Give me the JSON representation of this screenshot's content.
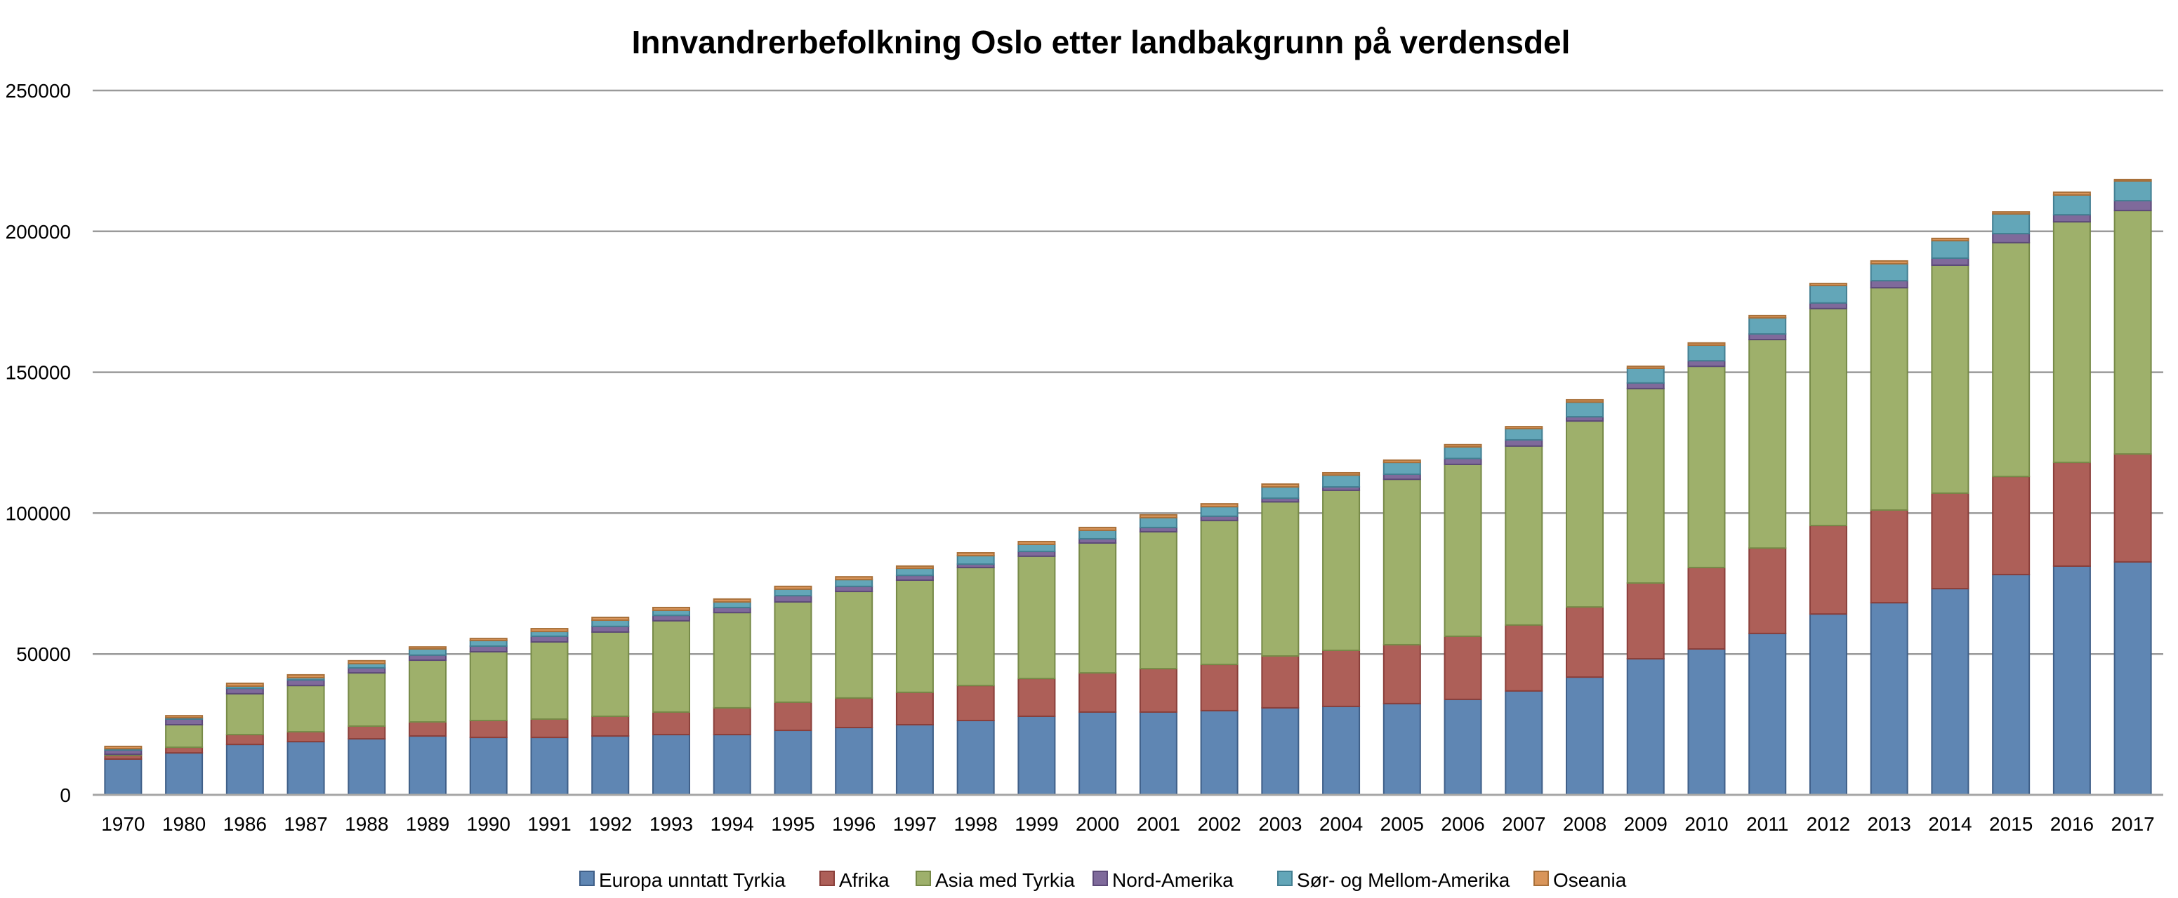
{
  "chart_data": {
    "type": "bar",
    "stacked": true,
    "title": "Innvandrerbefolkning Oslo etter landbakgrunn på verdensdel",
    "xlabel": "",
    "ylabel": "",
    "ylim": [
      0,
      250000
    ],
    "yticks": [
      "0",
      "50000",
      "100000",
      "150000",
      "200000",
      "250000"
    ],
    "ytick_values": [
      0,
      50000,
      100000,
      150000,
      200000,
      250000
    ],
    "grid": true,
    "legend_position": "bottom",
    "categories": [
      "1970",
      "1980",
      "1986",
      "1987",
      "1988",
      "1989",
      "1990",
      "1991",
      "1992",
      "1993",
      "1994",
      "1995",
      "1996",
      "1997",
      "1998",
      "1999",
      "2000",
      "2001",
      "2002",
      "2003",
      "2004",
      "2005",
      "2006",
      "2007",
      "2008",
      "2009",
      "2010",
      "2011",
      "2012",
      "2013",
      "2014",
      "2015",
      "2016",
      "2017"
    ],
    "series": [
      {
        "name": "Europa unntatt Tyrkia",
        "color": "#5f86b3",
        "border": "#3f5f88",
        "values": [
          12700,
          14900,
          17900,
          18900,
          19900,
          20900,
          20400,
          20400,
          20900,
          21400,
          21400,
          22900,
          23900,
          24900,
          26400,
          27900,
          29400,
          29400,
          29900,
          30900,
          31400,
          32400,
          33900,
          36900,
          41800,
          48300,
          51800,
          57300,
          64200,
          68200,
          73200,
          78200,
          81200,
          82700
        ]
      },
      {
        "name": "Afrika",
        "color": "#ad5f58",
        "border": "#8a3f3a",
        "values": [
          1300,
          2000,
          3500,
          3500,
          4500,
          5000,
          6000,
          6500,
          7000,
          8000,
          9500,
          10000,
          10500,
          11500,
          12400,
          13400,
          13900,
          15400,
          16400,
          18400,
          19900,
          20900,
          22400,
          23400,
          24900,
          26900,
          28900,
          30300,
          31400,
          32900,
          33900,
          34800,
          36800,
          38300
        ]
      },
      {
        "name": "Asia med Tyrkia",
        "color": "#9eb06b",
        "border": "#778a48",
        "values": [
          400,
          8000,
          14500,
          16400,
          18900,
          21900,
          24400,
          27400,
          29900,
          32400,
          33800,
          35600,
          37800,
          39800,
          41900,
          43400,
          46100,
          48600,
          51100,
          54700,
          56800,
          58700,
          61000,
          63500,
          66000,
          69000,
          71400,
          74000,
          77000,
          78900,
          80900,
          83000,
          85400,
          86400
        ]
      },
      {
        "name": "Nord-Amerika",
        "color": "#7f6a9b",
        "border": "#5c4a78",
        "values": [
          1500,
          2000,
          1900,
          2000,
          1800,
          1800,
          2000,
          2000,
          2000,
          1900,
          1800,
          2200,
          1800,
          1700,
          1200,
          1700,
          1500,
          1500,
          1500,
          1300,
          1200,
          1800,
          2100,
          2200,
          1500,
          2000,
          2000,
          2000,
          2000,
          2500,
          2500,
          3200,
          2500,
          3500
        ]
      },
      {
        "name": "Sør- og Mellom-Amerika",
        "color": "#63a6b8",
        "border": "#437f92",
        "values": [
          500,
          500,
          800,
          800,
          1500,
          2200,
          2000,
          1700,
          2200,
          1800,
          2000,
          2300,
          2400,
          2500,
          3000,
          2500,
          3000,
          3500,
          3400,
          4000,
          4200,
          4200,
          4100,
          4000,
          5200,
          5200,
          5500,
          5700,
          6200,
          6000,
          6200,
          7000,
          7000,
          7000
        ]
      },
      {
        "name": "Oseania",
        "color": "#d9955a",
        "border": "#a8703a",
        "values": [
          800,
          700,
          1000,
          1000,
          1000,
          700,
          700,
          1000,
          1000,
          1000,
          1000,
          1000,
          1000,
          800,
          1000,
          1000,
          1000,
          1000,
          1000,
          1000,
          800,
          800,
          800,
          700,
          800,
          700,
          800,
          800,
          700,
          1000,
          800,
          700,
          1000,
          500
        ]
      }
    ]
  }
}
